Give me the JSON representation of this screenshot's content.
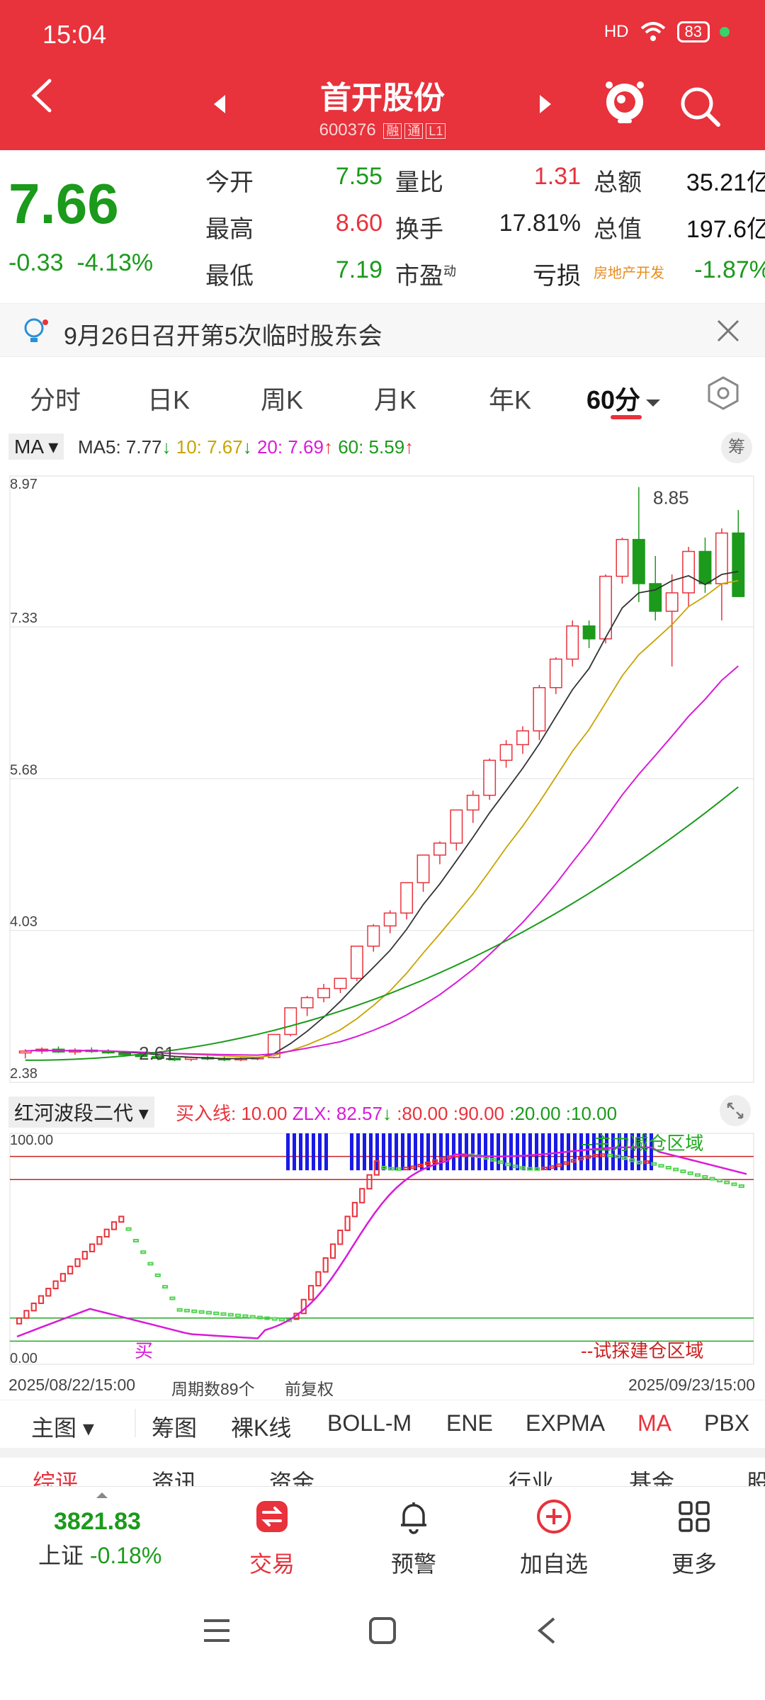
{
  "status": {
    "time": "15:04",
    "signal": "HD",
    "battery": "83"
  },
  "header": {
    "title": "首开股份",
    "code": "600376",
    "tag1": "融",
    "tag2": "通",
    "tag3": "L1"
  },
  "quote": {
    "price": "7.66",
    "change": "-0.33",
    "change_pct": "-4.13%",
    "open_label": "今开",
    "open": "7.55",
    "high_label": "最高",
    "high": "8.60",
    "low_label": "最低",
    "low": "7.19",
    "vol_ratio_label": "量比",
    "vol_ratio": "1.31",
    "turnover_label": "换手",
    "turnover": "17.81%",
    "pe_label": "市盈",
    "pe_sup": "动",
    "pe": "亏损",
    "amount_label": "总额",
    "amount": "35.21亿",
    "mcap_label": "总值",
    "mcap": "197.6亿",
    "sector": "房地产开发",
    "sector_pct": "-1.87%"
  },
  "notice": {
    "text": "9月26日召开第5次临时股东会"
  },
  "tabs": [
    "分时",
    "日K",
    "周K",
    "月K",
    "年K",
    "60分"
  ],
  "ma_bar": {
    "selector": "MA",
    "ma5": "MA5: 7.77",
    "ma10": "10: 7.67",
    "ma20": "20: 7.69",
    "ma60": "60: 5.59",
    "chip": "筹",
    "colors": {
      "ma5": "#333333",
      "ma10": "#c8a400",
      "ma20": "#d81bd8",
      "ma60": "#1b9a1b"
    }
  },
  "chart_data": {
    "type": "candlestick",
    "y_labels": [
      "8.97",
      "7.33",
      "5.68",
      "4.03",
      "2.38"
    ],
    "ylim": [
      2.38,
      8.97
    ],
    "high_label": "8.85",
    "low_label": "2.61",
    "candles": [
      [
        2.7,
        2.74,
        2.64,
        2.72
      ],
      [
        2.72,
        2.76,
        2.69,
        2.74
      ],
      [
        2.74,
        2.77,
        2.7,
        2.71
      ],
      [
        2.71,
        2.75,
        2.68,
        2.73
      ],
      [
        2.73,
        2.76,
        2.7,
        2.72
      ],
      [
        2.72,
        2.74,
        2.69,
        2.7
      ],
      [
        2.7,
        2.72,
        2.66,
        2.68
      ],
      [
        2.68,
        2.7,
        2.64,
        2.66
      ],
      [
        2.66,
        2.68,
        2.62,
        2.64
      ],
      [
        2.64,
        2.66,
        2.61,
        2.63
      ],
      [
        2.63,
        2.66,
        2.61,
        2.65
      ],
      [
        2.65,
        2.68,
        2.62,
        2.64
      ],
      [
        2.64,
        2.66,
        2.61,
        2.63
      ],
      [
        2.63,
        2.65,
        2.61,
        2.64
      ],
      [
        2.64,
        2.66,
        2.62,
        2.65
      ],
      [
        2.65,
        2.9,
        2.64,
        2.9
      ],
      [
        2.9,
        3.19,
        2.88,
        3.19
      ],
      [
        3.19,
        3.32,
        3.1,
        3.3
      ],
      [
        3.3,
        3.45,
        3.25,
        3.4
      ],
      [
        3.4,
        3.51,
        3.35,
        3.51
      ],
      [
        3.51,
        3.86,
        3.48,
        3.86
      ],
      [
        3.86,
        4.1,
        3.8,
        4.08
      ],
      [
        4.08,
        4.25,
        4.0,
        4.22
      ],
      [
        4.22,
        4.55,
        4.15,
        4.55
      ],
      [
        4.55,
        4.85,
        4.45,
        4.85
      ],
      [
        4.85,
        5.0,
        4.75,
        4.98
      ],
      [
        4.98,
        5.34,
        4.9,
        5.34
      ],
      [
        5.34,
        5.55,
        5.2,
        5.5
      ],
      [
        5.5,
        5.9,
        5.45,
        5.88
      ],
      [
        5.88,
        6.1,
        5.8,
        6.05
      ],
      [
        6.05,
        6.25,
        5.95,
        6.2
      ],
      [
        6.2,
        6.7,
        6.1,
        6.67
      ],
      [
        6.67,
        7.0,
        6.6,
        6.98
      ],
      [
        6.98,
        7.4,
        6.9,
        7.34
      ],
      [
        7.34,
        7.4,
        7.1,
        7.2
      ],
      [
        7.2,
        7.9,
        7.15,
        7.88
      ],
      [
        7.88,
        8.3,
        7.8,
        8.28
      ],
      [
        8.28,
        8.85,
        7.6,
        7.8
      ],
      [
        7.8,
        8.1,
        7.4,
        7.5
      ],
      [
        7.5,
        7.9,
        6.9,
        7.7
      ],
      [
        7.7,
        8.2,
        7.55,
        8.15
      ],
      [
        8.15,
        8.3,
        7.7,
        7.8
      ],
      [
        7.8,
        8.4,
        7.4,
        8.35
      ],
      [
        8.35,
        8.6,
        7.7,
        7.66
      ]
    ],
    "ma_lines": [
      "MA5",
      "MA10",
      "MA20",
      "MA60"
    ]
  },
  "indicator": {
    "name": "红河波段二代",
    "buy_line": "买入线: 10.00",
    "zlx": "ZLX: 82.57",
    "levels": [
      ":80.00",
      ":90.00",
      ":20.00",
      ":10.00"
    ],
    "top_label": "100.00",
    "bottom_label": "0.00",
    "zone_top": "--主力减仓区域",
    "zone_bottom": "--试探建仓区域",
    "buy_marker": "买"
  },
  "axis": {
    "start": "2025/08/22/15:00",
    "count": "周期数89个",
    "adj": "前复权",
    "end": "2025/09/23/15:00"
  },
  "overlay_tabs": [
    "主图",
    "筹图",
    "裸K线",
    "BOLL-M",
    "ENE",
    "EXPMA",
    "MA",
    "PBX"
  ],
  "peek_row": [
    "综评",
    "资讯",
    "资金",
    "行业",
    "基金",
    "股"
  ],
  "bottom_nav": {
    "index_value": "3821.83",
    "index_name": "上证",
    "index_change": "-0.18%",
    "items": [
      "交易",
      "预警",
      "加自选",
      "更多"
    ]
  }
}
